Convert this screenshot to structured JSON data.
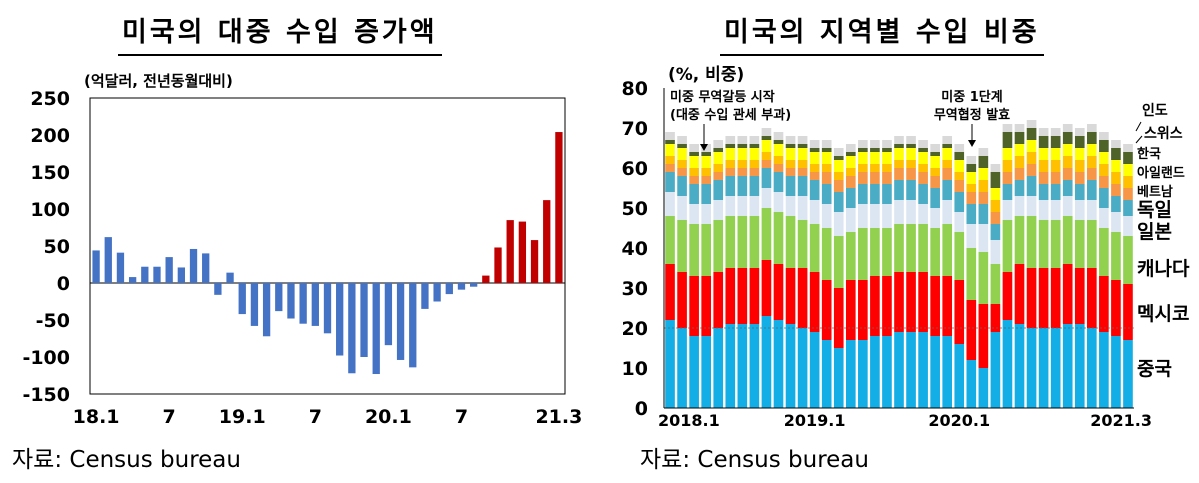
{
  "colors": {
    "positive_bar": "#c00000",
    "negative_bar": "#4472c4",
    "china": "#13aee6",
    "mexico": "#ff0000",
    "canada": "#92d050",
    "japan": "#dce6f2",
    "germany": "#4bacc6",
    "vietnam": "#f79646",
    "ireland": "#ffc000",
    "korea": "#ffff00",
    "switzerland": "#4f6228",
    "india": "#d9d9d9"
  },
  "left": {
    "title": "미국의 대중 수입 증가액",
    "unit": "(억달러, 전년동월대비)",
    "source": "자료: Census bureau"
  },
  "right": {
    "title": "미국의 지역별 수입 비중",
    "unit": "(%, 비중)",
    "source": "자료: Census bureau",
    "annotations": [
      "미중 무역갈등 시작",
      "(대중 수입 관세 부과)",
      "미중 1단계",
      "무역협정 발효"
    ]
  },
  "chart_data": [
    {
      "type": "bar",
      "title": "미국의 대중 수입 증가액",
      "ylabel": "(억달러, 전년동월대비)",
      "ylim": [
        -150,
        250
      ],
      "yticks": [
        250,
        200,
        150,
        100,
        50,
        0,
        -50,
        -100,
        -150
      ],
      "x_tick_labels": [
        {
          "index": 0,
          "label": "18.1"
        },
        {
          "index": 6,
          "label": "7"
        },
        {
          "index": 12,
          "label": "19.1"
        },
        {
          "index": 18,
          "label": "7"
        },
        {
          "index": 24,
          "label": "20.1"
        },
        {
          "index": 30,
          "label": "7"
        },
        {
          "index": 38,
          "label": "21.3"
        }
      ],
      "x": [
        "2018-01",
        "2018-02",
        "2018-03",
        "2018-04",
        "2018-05",
        "2018-06",
        "2018-07",
        "2018-08",
        "2018-09",
        "2018-10",
        "2018-11",
        "2018-12",
        "2019-01",
        "2019-02",
        "2019-03",
        "2019-04",
        "2019-05",
        "2019-06",
        "2019-07",
        "2019-08",
        "2019-09",
        "2019-10",
        "2019-11",
        "2019-12",
        "2020-01",
        "2020-02",
        "2020-03",
        "2020-04",
        "2020-05",
        "2020-06",
        "2020-07",
        "2020-08",
        "2020-09",
        "2020-10",
        "2020-11",
        "2020-12",
        "2021-01",
        "2021-02",
        "2021-03"
      ],
      "values": [
        44,
        62,
        41,
        8,
        22,
        22,
        35,
        21,
        46,
        40,
        -16,
        14,
        -42,
        -58,
        -72,
        -38,
        -48,
        -55,
        -58,
        -68,
        -98,
        -122,
        -100,
        -123,
        -84,
        -104,
        -114,
        -35,
        -25,
        -15,
        -9,
        -5,
        10,
        48,
        85,
        83,
        58,
        112,
        204
      ]
    },
    {
      "type": "bar",
      "stacked": true,
      "title": "미국의 지역별 수입 비중",
      "ylabel": "(%, 비중)",
      "ylim": [
        0,
        80
      ],
      "yticks": [
        80,
        70,
        60,
        50,
        40,
        30,
        20,
        10,
        0
      ],
      "reference_line": 20,
      "x_tick_labels": [
        {
          "index": 0,
          "label": "2018.1"
        },
        {
          "index": 12,
          "label": "2019.1"
        },
        {
          "index": 24,
          "label": "2020.1"
        },
        {
          "index": 38,
          "label": "2021.3"
        }
      ],
      "x": [
        "2018-01",
        "2018-02",
        "2018-03",
        "2018-04",
        "2018-05",
        "2018-06",
        "2018-07",
        "2018-08",
        "2018-09",
        "2018-10",
        "2018-11",
        "2018-12",
        "2019-01",
        "2019-02",
        "2019-03",
        "2019-04",
        "2019-05",
        "2019-06",
        "2019-07",
        "2019-08",
        "2019-09",
        "2019-10",
        "2019-11",
        "2019-12",
        "2020-01",
        "2020-02",
        "2020-03",
        "2020-04",
        "2020-05",
        "2020-06",
        "2020-07",
        "2020-08",
        "2020-09",
        "2020-10",
        "2020-11",
        "2020-12",
        "2021-01",
        "2021-02",
        "2021-03"
      ],
      "series": [
        {
          "name": "중국",
          "values": [
            22,
            20,
            18,
            18,
            20,
            21,
            21,
            21,
            23,
            22,
            21,
            20,
            19,
            17,
            15,
            17,
            17,
            18,
            18,
            19,
            19,
            19,
            18,
            18,
            16,
            12,
            10,
            19,
            22,
            21,
            20,
            20,
            20,
            21,
            21,
            20,
            19,
            18,
            17
          ]
        },
        {
          "name": "멕시코",
          "values": [
            14,
            14,
            15,
            15,
            14,
            14,
            14,
            14,
            14,
            14,
            14,
            15,
            15,
            15,
            15,
            15,
            15,
            15,
            15,
            15,
            15,
            15,
            15,
            15,
            16,
            15,
            16,
            7,
            12,
            15,
            15,
            15,
            15,
            15,
            14,
            15,
            14,
            14,
            14
          ]
        },
        {
          "name": "캐나다",
          "values": [
            12,
            13,
            13,
            13,
            13,
            13,
            13,
            13,
            13,
            13,
            13,
            12,
            12,
            13,
            13,
            12,
            13,
            12,
            12,
            12,
            12,
            12,
            12,
            13,
            12,
            13,
            13,
            10,
            13,
            12,
            13,
            12,
            12,
            12,
            12,
            12,
            12,
            12,
            12
          ]
        },
        {
          "name": "일본",
          "values": [
            6,
            6,
            5,
            5,
            5,
            5,
            5,
            5,
            5,
            5,
            5,
            6,
            6,
            6,
            6,
            6,
            6,
            6,
            6,
            6,
            6,
            5,
            5,
            6,
            5,
            6,
            7,
            6,
            5,
            5,
            5,
            5,
            5,
            5,
            5,
            5,
            5,
            5,
            5
          ]
        },
        {
          "name": "독일",
          "values": [
            5,
            5,
            5,
            5,
            5,
            5,
            5,
            5,
            5,
            5,
            5,
            5,
            5,
            5,
            5,
            5,
            5,
            5,
            5,
            5,
            5,
            5,
            5,
            5,
            5,
            5,
            5,
            4,
            4,
            4,
            5,
            4,
            4,
            4,
            4,
            5,
            5,
            4,
            4
          ]
        },
        {
          "name": "베트남",
          "values": [
            2,
            2,
            2,
            2,
            2,
            2,
            2,
            2,
            2,
            2,
            2,
            2,
            2,
            3,
            3,
            3,
            3,
            3,
            3,
            3,
            3,
            3,
            3,
            3,
            3,
            3,
            3,
            3,
            3,
            3,
            3,
            3,
            3,
            3,
            3,
            3,
            3,
            3,
            3
          ]
        },
        {
          "name": "아일랜드",
          "values": [
            2,
            2,
            2,
            2,
            2,
            2,
            2,
            2,
            2,
            2,
            2,
            2,
            2,
            2,
            2,
            2,
            2,
            2,
            2,
            2,
            2,
            2,
            2,
            2,
            2,
            2,
            3,
            3,
            3,
            3,
            3,
            3,
            3,
            3,
            3,
            3,
            3,
            3,
            3
          ]
        },
        {
          "name": "한국",
          "values": [
            3,
            3,
            3,
            3,
            3,
            3,
            3,
            3,
            3,
            3,
            3,
            3,
            3,
            3,
            3,
            3,
            3,
            3,
            3,
            3,
            3,
            3,
            3,
            3,
            3,
            3,
            3,
            3,
            3,
            3,
            3,
            3,
            3,
            3,
            3,
            3,
            3,
            3,
            3
          ]
        },
        {
          "name": "스위스",
          "values": [
            1,
            1,
            1,
            1,
            1,
            1,
            1,
            1,
            1,
            1,
            1,
            1,
            1,
            1,
            1,
            1,
            1,
            1,
            1,
            1,
            1,
            1,
            1,
            1,
            2,
            2,
            3,
            4,
            4,
            3,
            3,
            3,
            3,
            3,
            3,
            3,
            3,
            3,
            3
          ]
        },
        {
          "name": "인도",
          "values": [
            2,
            2,
            2,
            2,
            2,
            2,
            2,
            2,
            2,
            2,
            2,
            2,
            2,
            2,
            2,
            2,
            2,
            2,
            2,
            2,
            2,
            2,
            2,
            2,
            2,
            2,
            2,
            2,
            2,
            2,
            2,
            2,
            2,
            2,
            2,
            2,
            2,
            2,
            2
          ]
        }
      ]
    }
  ]
}
